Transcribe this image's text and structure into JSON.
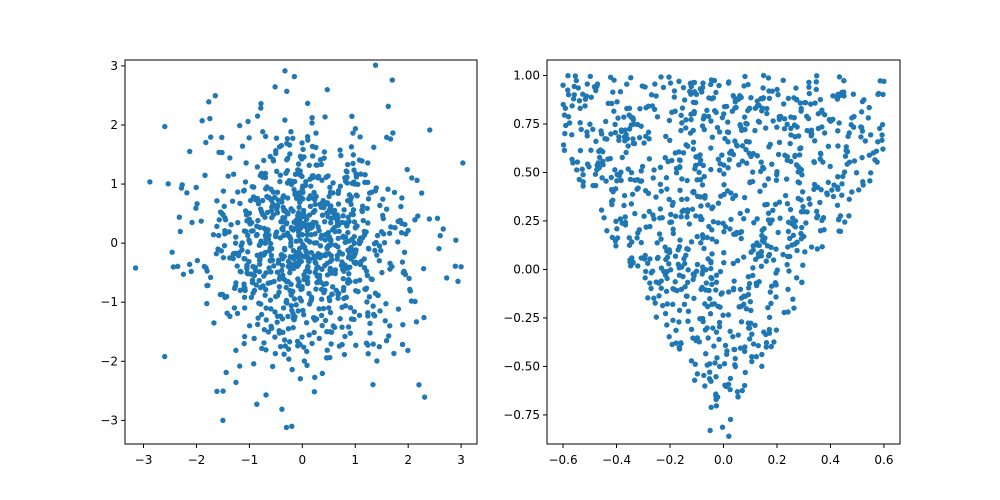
{
  "chart_data": [
    {
      "type": "scatter",
      "title": "",
      "xlabel": "",
      "ylabel": "",
      "xlim": [
        -3.35,
        3.3
      ],
      "ylim": [
        -3.4,
        3.1
      ],
      "xticks": [
        -3,
        -2,
        -1,
        0,
        1,
        2,
        3
      ],
      "yticks": [
        -3,
        -2,
        -1,
        0,
        1,
        2,
        3
      ],
      "xtick_labels": [
        "−3",
        "−2",
        "−1",
        "0",
        "1",
        "2",
        "3"
      ],
      "ytick_labels": [
        "−3",
        "−2",
        "−1",
        "0",
        "1",
        "2",
        "3"
      ],
      "grid": false,
      "marker_color": "#1f77b4",
      "distribution": "standard normal cloud, ~1000 points centered at (0, 0)",
      "notable_points": [
        [
          -3.15,
          -0.42
        ],
        [
          -2.6,
          -1.92
        ],
        [
          -1.5,
          -3.0
        ],
        [
          -0.3,
          -3.12
        ],
        [
          -0.2,
          -3.1
        ],
        [
          -0.15,
          2.82
        ],
        [
          1.7,
          2.76
        ],
        [
          3.0,
          -0.4
        ],
        [
          2.9,
          0.05
        ]
      ]
    },
    {
      "type": "scatter",
      "title": "",
      "xlabel": "",
      "ylabel": "",
      "xlim": [
        -0.66,
        0.66
      ],
      "ylim": [
        -0.9,
        1.08
      ],
      "xticks": [
        -0.6,
        -0.4,
        -0.2,
        0.0,
        0.2,
        0.4,
        0.6
      ],
      "yticks": [
        -0.75,
        -0.5,
        -0.25,
        0.0,
        0.25,
        0.5,
        0.75,
        1.0
      ],
      "xtick_labels": [
        "−0.6",
        "−0.4",
        "−0.2",
        "0.0",
        "0.2",
        "0.4",
        "0.6"
      ],
      "ytick_labels": [
        "−0.75",
        "−0.50",
        "−0.25",
        "0.00",
        "0.25",
        "0.50",
        "0.75",
        "1.00"
      ],
      "grid": false,
      "marker_color": "#1f77b4",
      "distribution": "uniform points inside a V-shaped region: y between ~2.4*|x|-0.85 and 1.0, x in [-0.6, 0.6]",
      "notable_points": [
        [
          0.6,
          0.97
        ],
        [
          -0.6,
          0.95
        ],
        [
          0.02,
          -0.86
        ],
        [
          -0.05,
          -0.83
        ],
        [
          0.15,
          1.0
        ]
      ]
    }
  ]
}
